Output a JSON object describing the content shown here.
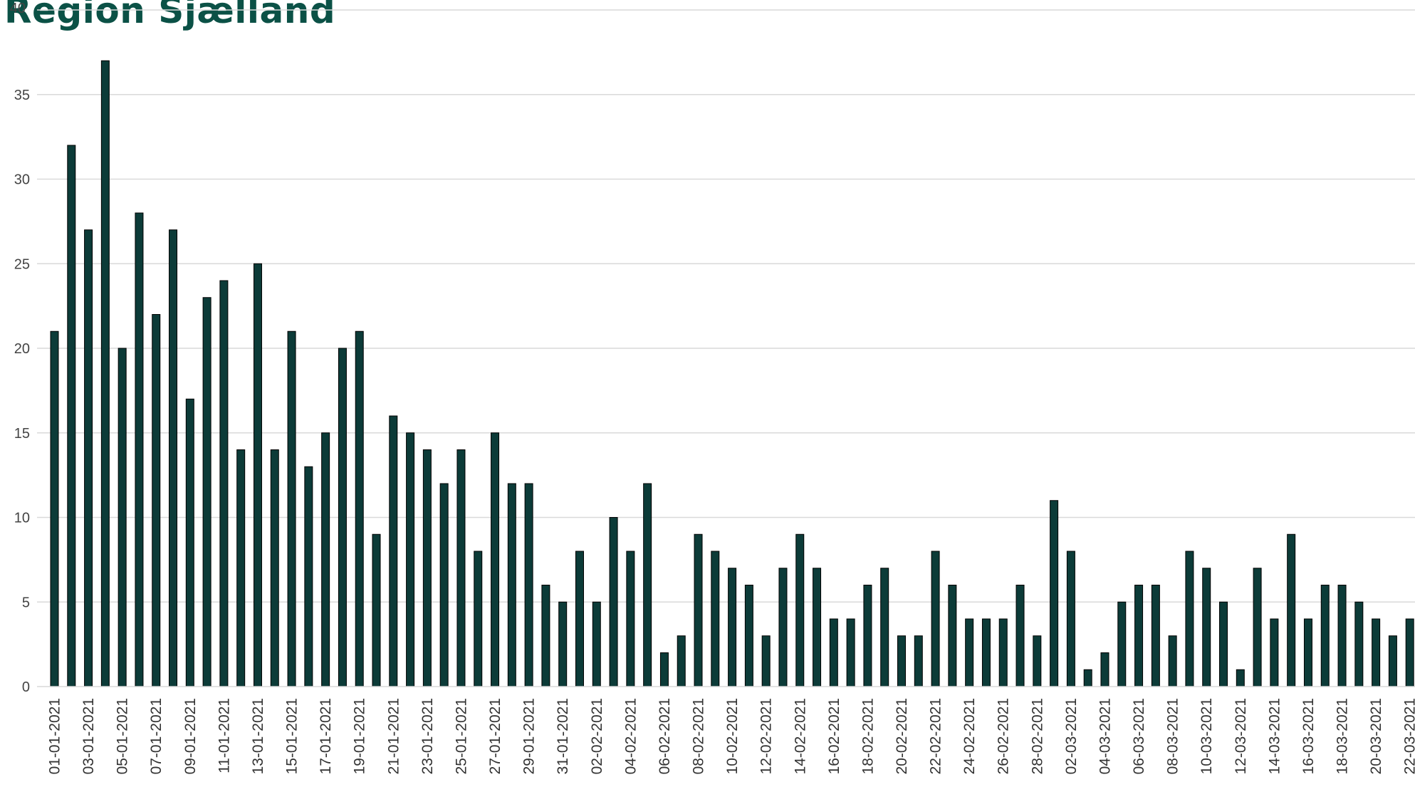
{
  "title": "Region Sjælland",
  "colors": {
    "bar": "#0c3b38",
    "title": "#0b5146",
    "grid": "#d9d9d9"
  },
  "chart_data": {
    "type": "bar",
    "title": "Region Sjælland",
    "xlabel": "",
    "ylabel": "",
    "ylim": [
      0,
      40
    ],
    "yticks": [
      0,
      5,
      10,
      15,
      20,
      25,
      30,
      35,
      40
    ],
    "grid": true,
    "legend": "none",
    "categories": [
      "01-01-2021",
      "02-01-2021",
      "03-01-2021",
      "04-01-2021",
      "05-01-2021",
      "06-01-2021",
      "07-01-2021",
      "08-01-2021",
      "09-01-2021",
      "10-01-2021",
      "11-01-2021",
      "12-01-2021",
      "13-01-2021",
      "14-01-2021",
      "15-01-2021",
      "16-01-2021",
      "17-01-2021",
      "18-01-2021",
      "19-01-2021",
      "20-01-2021",
      "21-01-2021",
      "22-01-2021",
      "23-01-2021",
      "24-01-2021",
      "25-01-2021",
      "26-01-2021",
      "27-01-2021",
      "28-01-2021",
      "29-01-2021",
      "30-01-2021",
      "31-01-2021",
      "01-02-2021",
      "02-02-2021",
      "03-02-2021",
      "04-02-2021",
      "05-02-2021",
      "06-02-2021",
      "07-02-2021",
      "08-02-2021",
      "09-02-2021",
      "10-02-2021",
      "11-02-2021",
      "12-02-2021",
      "13-02-2021",
      "14-02-2021",
      "15-02-2021",
      "16-02-2021",
      "17-02-2021",
      "18-02-2021",
      "19-02-2021",
      "20-02-2021",
      "21-02-2021",
      "22-02-2021",
      "23-02-2021",
      "24-02-2021",
      "25-02-2021",
      "26-02-2021",
      "27-02-2021",
      "28-02-2021",
      "01-03-2021",
      "02-03-2021",
      "03-03-2021",
      "04-03-2021",
      "05-03-2021",
      "06-03-2021",
      "07-03-2021",
      "08-03-2021",
      "09-03-2021",
      "10-03-2021",
      "11-03-2021",
      "12-03-2021",
      "13-03-2021",
      "14-03-2021",
      "15-03-2021",
      "16-03-2021",
      "17-03-2021",
      "18-03-2021",
      "19-03-2021",
      "20-03-2021",
      "21-03-2021",
      "22-03-2021"
    ],
    "xtick_labels": [
      "01-01-2021",
      "03-01-2021",
      "05-01-2021",
      "07-01-2021",
      "09-01-2021",
      "11-01-2021",
      "13-01-2021",
      "15-01-2021",
      "17-01-2021",
      "19-01-2021",
      "21-01-2021",
      "23-01-2021",
      "25-01-2021",
      "27-01-2021",
      "29-01-2021",
      "31-01-2021",
      "02-02-2021",
      "04-02-2021",
      "06-02-2021",
      "08-02-2021",
      "10-02-2021",
      "12-02-2021",
      "14-02-2021",
      "16-02-2021",
      "18-02-2021",
      "20-02-2021",
      "22-02-2021",
      "24-02-2021",
      "26-02-2021",
      "28-02-2021",
      "02-03-2021",
      "04-03-2021",
      "06-03-2021",
      "08-03-2021",
      "10-03-2021",
      "12-03-2021",
      "14-03-2021",
      "16-03-2021",
      "18-03-2021",
      "20-03-2021",
      "22-03-2021"
    ],
    "values": [
      21,
      32,
      27,
      37,
      20,
      28,
      22,
      27,
      17,
      23,
      24,
      14,
      25,
      14,
      21,
      13,
      15,
      20,
      21,
      9,
      16,
      15,
      14,
      12,
      14,
      8,
      15,
      12,
      12,
      6,
      5,
      8,
      5,
      10,
      8,
      12,
      2,
      3,
      9,
      8,
      7,
      6,
      3,
      7,
      9,
      7,
      4,
      4,
      6,
      7,
      3,
      3,
      8,
      6,
      4,
      4,
      4,
      6,
      3,
      11,
      8,
      1,
      2,
      5,
      6,
      6,
      3,
      8,
      7,
      5,
      1,
      7,
      4,
      9,
      4,
      6,
      6,
      5,
      4,
      3,
      4
    ]
  }
}
